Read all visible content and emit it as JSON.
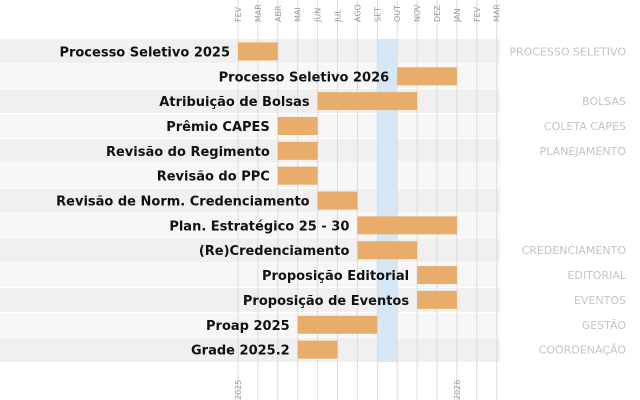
{
  "chart_data": {
    "type": "gantt",
    "months": [
      "FEV",
      "MAR",
      "ABR",
      "MAI",
      "JUN",
      "JUL",
      "AGO",
      "SET",
      "OUT",
      "NOV",
      "DEZ",
      "JAN",
      "FEV",
      "MAR"
    ],
    "years": [
      {
        "label": "2025",
        "month_index": 0
      },
      {
        "label": "2026",
        "month_index": 11
      }
    ],
    "highlight": {
      "start": 7,
      "end": 8
    },
    "tasks": [
      {
        "label": "Processo Seletivo 2025",
        "start": 0,
        "end": 2
      },
      {
        "label": "Processo Seletivo 2026",
        "start": 8,
        "end": 11
      },
      {
        "label": "Atribuição de Bolsas",
        "start": 4,
        "end": 9
      },
      {
        "label": "Prêmio CAPES",
        "start": 2,
        "end": 4
      },
      {
        "label": "Revisão do Regimento",
        "start": 2,
        "end": 4
      },
      {
        "label": "Revisão do PPC",
        "start": 2,
        "end": 4
      },
      {
        "label": "Revisão de Norm. Credenciamento",
        "start": 4,
        "end": 6
      },
      {
        "label": "Plan. Estratégico 25 - 30",
        "start": 6,
        "end": 11
      },
      {
        "label": "(Re)Credenciamento",
        "start": 6,
        "end": 9
      },
      {
        "label": "Proposição Editorial",
        "start": 9,
        "end": 11
      },
      {
        "label": "Proposição de Eventos",
        "start": 9,
        "end": 11
      },
      {
        "label": "Proap 2025",
        "start": 3,
        "end": 7
      },
      {
        "label": "Grade 2025.2",
        "start": 3,
        "end": 5
      }
    ],
    "categories": [
      {
        "label": "PROCESSO SELETIVO",
        "first_row": 0,
        "rows": 2
      },
      {
        "label": "BOLSAS",
        "first_row": 2,
        "rows": 1
      },
      {
        "label": "COLETA CAPES",
        "first_row": 3,
        "rows": 1
      },
      {
        "label": "PLANEJAMENTO",
        "first_row": 4,
        "rows": 4
      },
      {
        "label": "CREDENCIAMENTO",
        "first_row": 8,
        "rows": 1
      },
      {
        "label": "EDITORIAL",
        "first_row": 9,
        "rows": 1
      },
      {
        "label": "EVENTOS",
        "first_row": 10,
        "rows": 1
      },
      {
        "label": "GESTÃO",
        "first_row": 11,
        "rows": 1
      },
      {
        "label": "COORDENAÇÃO",
        "first_row": 12,
        "rows": 1
      }
    ],
    "colors": {
      "bar": "#e8ad6a",
      "highlight": "#d3e6f3",
      "band_a": "#f0f0f0",
      "band_b": "#f7f7f7",
      "grid": "#dcdcdc"
    }
  }
}
